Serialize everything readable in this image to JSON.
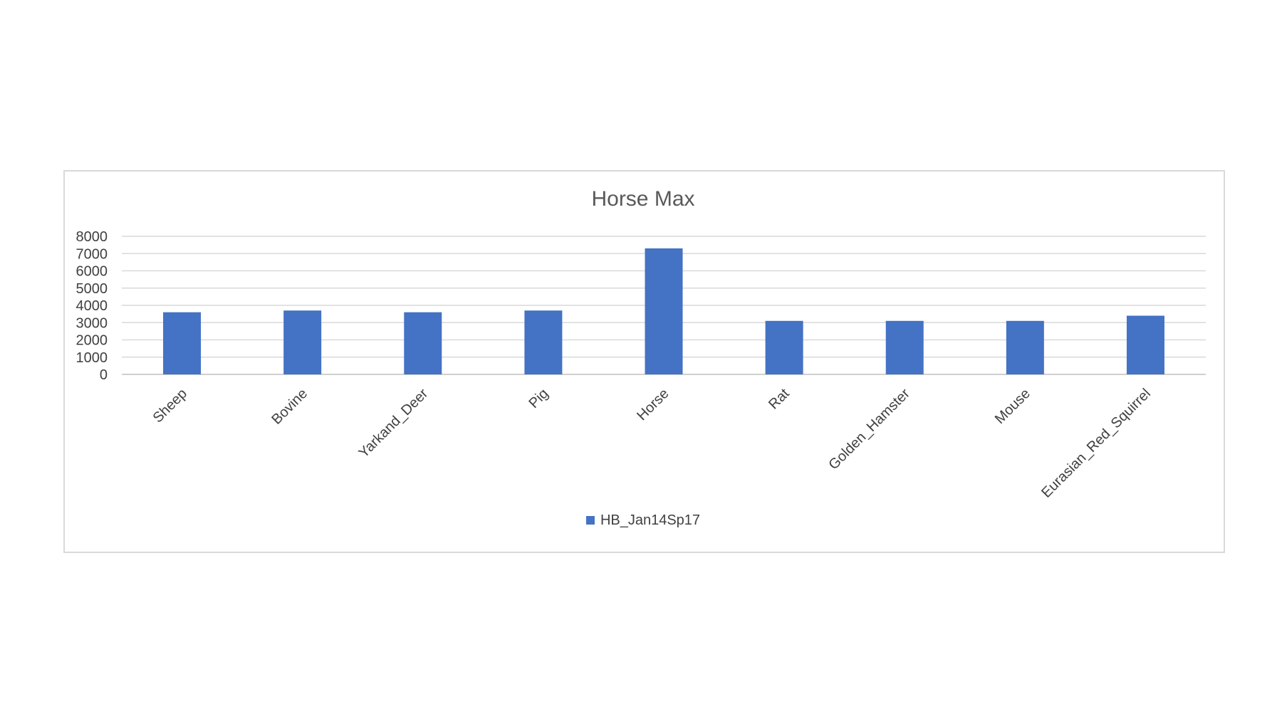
{
  "chart_data": {
    "type": "bar",
    "title": "Horse Max",
    "xlabel": "",
    "ylabel": "",
    "categories": [
      "Sheep",
      "Bovine",
      "Yarkand_Deer",
      "Pig",
      "Horse",
      "Rat",
      "Golden_Hamster",
      "Mouse",
      "Eurasian_Red_Squirrel"
    ],
    "series": [
      {
        "name": "HB_Jan14Sp17",
        "color": "#4472c4",
        "values": [
          3600,
          3700,
          3600,
          3700,
          7300,
          3100,
          3100,
          3100,
          3400
        ]
      }
    ],
    "yticks": [
      "0",
      "1000",
      "2000",
      "3000",
      "4000",
      "5000",
      "6000",
      "7000",
      "8000"
    ],
    "ylim": [
      0,
      8000
    ],
    "grid": true,
    "legend_position": "bottom"
  }
}
